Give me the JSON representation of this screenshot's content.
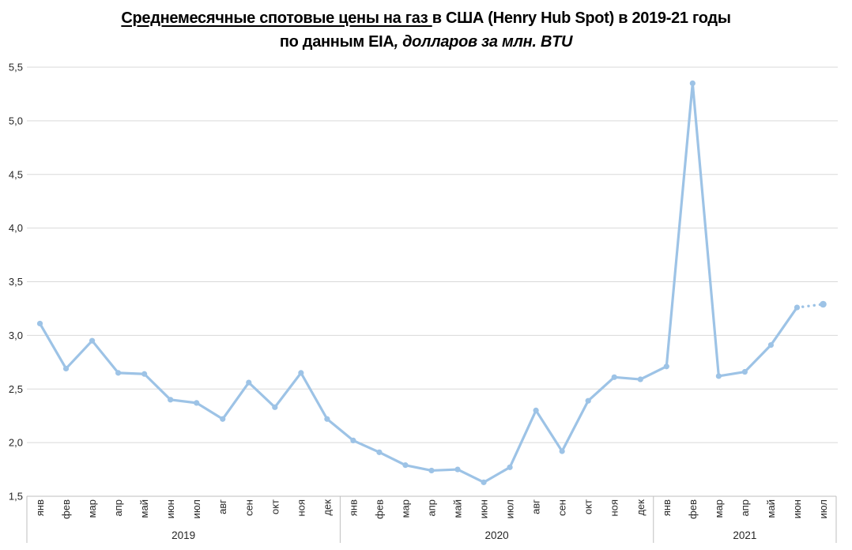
{
  "title": {
    "line1_underlined": "Среднемесячные спотовые цены на газ ",
    "line1_rest": "в США (Henry Hub Spot) в 2019-21 годы",
    "line2_bold": "по данным EIA",
    "line2_italic": ", долларов за млн. BTU"
  },
  "chart_data": {
    "type": "line",
    "title": "Среднемесячные спотовые цены на газ в США (Henry Hub Spot) в 2019-21 годы",
    "subtitle": "по данным EIA, долларов за млн. BTU",
    "xlabel": "",
    "ylabel": "долларов за млн. BTU",
    "ylim": [
      1.5,
      5.5
    ],
    "ytick_step": 0.5,
    "yticks": [
      {
        "value": 1.5,
        "label": "1,5"
      },
      {
        "value": 2.0,
        "label": "2,0"
      },
      {
        "value": 2.5,
        "label": "2,5"
      },
      {
        "value": 3.0,
        "label": "3,0"
      },
      {
        "value": 3.5,
        "label": "3,5"
      },
      {
        "value": 4.0,
        "label": "4,0"
      },
      {
        "value": 4.5,
        "label": "4,5"
      },
      {
        "value": 5.0,
        "label": "5,0"
      },
      {
        "value": 5.5,
        "label": "5,5"
      }
    ],
    "grid": true,
    "legend": false,
    "year_groups": [
      {
        "year": "2019",
        "months": [
          "янв",
          "фев",
          "мар",
          "апр",
          "май",
          "июн",
          "июл",
          "авг",
          "сен",
          "окт",
          "ноя",
          "дек"
        ]
      },
      {
        "year": "2020",
        "months": [
          "янв",
          "фев",
          "мар",
          "апр",
          "май",
          "июн",
          "июл",
          "авг",
          "сен",
          "окт",
          "ноя",
          "дек"
        ]
      },
      {
        "year": "2021",
        "months": [
          "янв",
          "фев",
          "мар",
          "апр",
          "май",
          "июн",
          "июл"
        ]
      }
    ],
    "categories": [
      "янв 2019",
      "фев 2019",
      "мар 2019",
      "апр 2019",
      "май 2019",
      "июн 2019",
      "июл 2019",
      "авг 2019",
      "сен 2019",
      "окт 2019",
      "ноя 2019",
      "дек 2019",
      "янв 2020",
      "фев 2020",
      "мар 2020",
      "апр 2020",
      "май 2020",
      "июн 2020",
      "июл 2020",
      "авг 2020",
      "сен 2020",
      "окт 2020",
      "ноя 2020",
      "дек 2020",
      "янв 2021",
      "фев 2021",
      "мар 2021",
      "апр 2021",
      "май 2021",
      "июн 2021",
      "июл 2021"
    ],
    "series": [
      {
        "name": "Henry Hub Spot",
        "values": [
          3.11,
          2.69,
          2.95,
          2.65,
          2.64,
          2.4,
          2.37,
          2.22,
          2.56,
          2.33,
          2.65,
          2.22,
          2.02,
          1.91,
          1.79,
          1.74,
          1.75,
          1.63,
          1.77,
          2.3,
          1.92,
          2.39,
          2.61,
          2.59,
          2.71,
          5.35,
          2.62,
          2.66,
          2.91,
          3.26,
          3.29
        ],
        "last_segment_dotted": true
      }
    ],
    "colors": {
      "line": "#9DC3E6",
      "marker": "#9DC3E6",
      "gridline": "#D9D9D9",
      "axis_line": "#BFBFBF",
      "axis_text": "#262626",
      "background": "#FFFFFF"
    }
  }
}
